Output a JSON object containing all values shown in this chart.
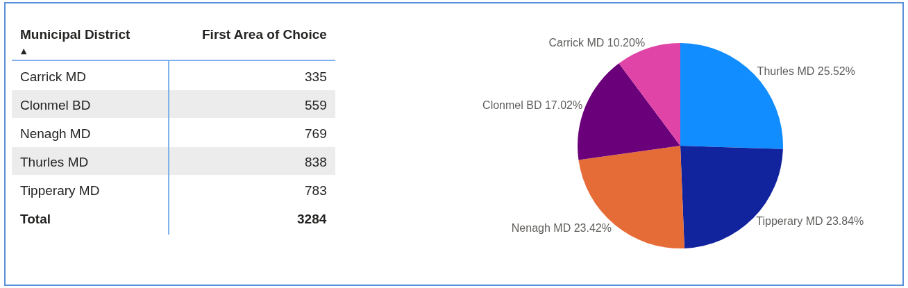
{
  "chart_data": [
    {
      "type": "other",
      "xlabel": "Municipal District",
      "ylabel": "First Area of Choice",
      "categories": [
        "Carrick MD",
        "Clonmel BD",
        "Nenagh MD",
        "Thurles MD",
        "Tipperary MD"
      ],
      "values": [
        335,
        559,
        769,
        838,
        783
      ],
      "data_labels": true,
      "totals": [
        "3284"
      ],
      "annotations": [
        "▲",
        "Total"
      ]
    },
    {
      "type": "pie",
      "categories": [
        "Thurles MD",
        "Tipperary MD",
        "Nenagh MD",
        "Clonmel BD",
        "Carrick MD"
      ],
      "values": [
        25.52,
        23.84,
        23.42,
        17.02,
        10.2
      ],
      "colors": [
        "#118dff",
        "#12239e",
        "#e66c37",
        "#6b007b",
        "#e044a7"
      ],
      "value_labels": [
        "25.52%",
        "23.84%",
        "23.42%",
        "17.02%",
        "10.20%"
      ],
      "legend": false
    }
  ]
}
